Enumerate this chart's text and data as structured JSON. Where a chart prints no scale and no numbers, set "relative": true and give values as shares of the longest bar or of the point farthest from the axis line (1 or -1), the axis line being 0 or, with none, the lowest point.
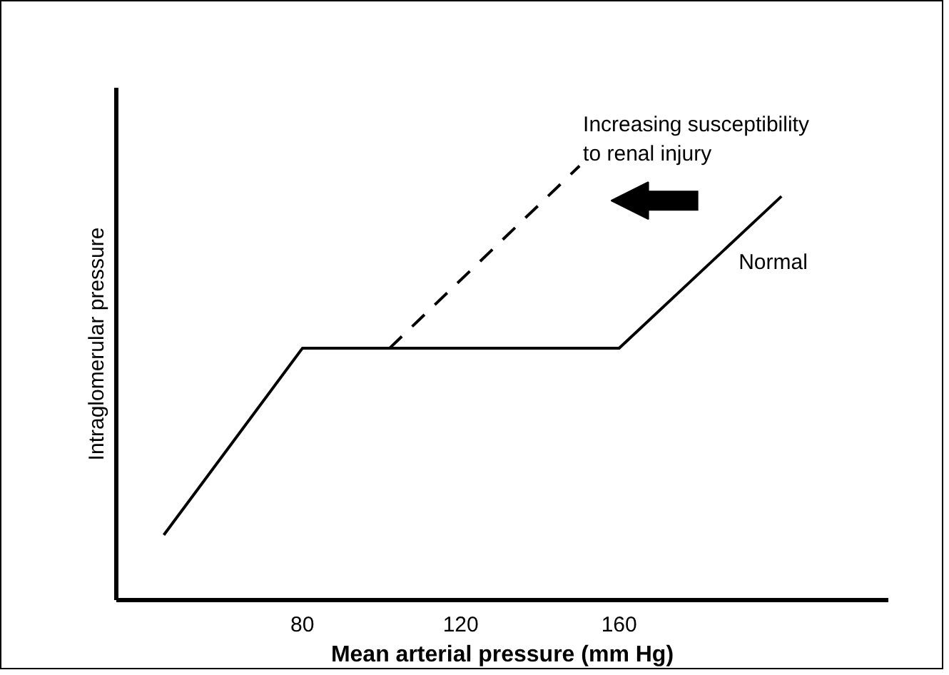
{
  "chart_data": {
    "type": "line",
    "relative": true,
    "xlabel": "Mean arterial pressure (mm Hg)",
    "ylabel": "Intraglomerular pressure",
    "xlim": [
      33,
      228
    ],
    "xticks": [
      80,
      120,
      160
    ],
    "tick_labels": "x",
    "grid": false,
    "series": [
      {
        "name": "Normal",
        "color": "#000000",
        "line_style": "solid",
        "x": [
          45,
          80,
          160,
          201
        ],
        "values": [
          0.15,
          0.58,
          0.58,
          0.93
        ]
      },
      {
        "color": "#000000",
        "line_style": "dashed",
        "x": [
          102,
          150
        ],
        "values": [
          0.58,
          1
        ]
      }
    ],
    "annotations": [
      "Increasing susceptibility\nto renal injury"
    ]
  }
}
